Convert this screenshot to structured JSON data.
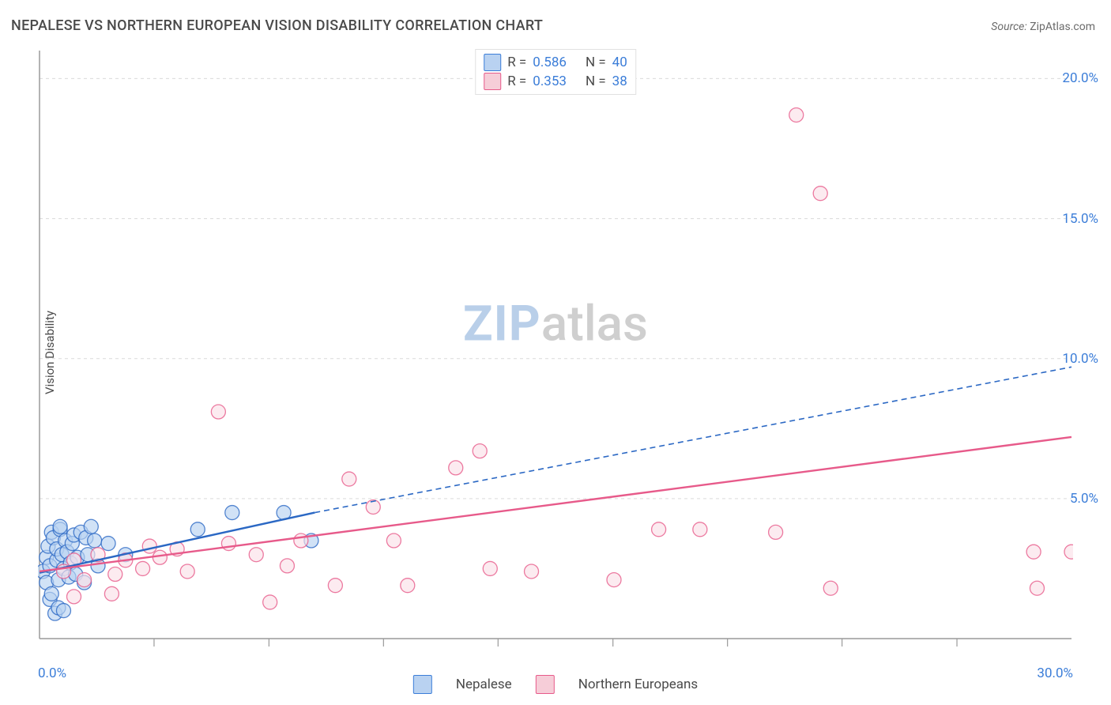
{
  "title": "NEPALESE VS NORTHERN EUROPEAN VISION DISABILITY CORRELATION CHART",
  "source_label": "Source:",
  "source_name": "ZipAtlas.com",
  "ylabel": "Vision Disability",
  "watermark": {
    "zip": "ZIP",
    "atlas": "atlas"
  },
  "xlim": [
    0,
    30
  ],
  "ylim": [
    0,
    21
  ],
  "x_axis": {
    "origin": "0.0%",
    "end": "30.0%",
    "ticks": [
      3.33,
      6.67,
      10.0,
      13.33,
      16.67,
      20.0,
      23.33,
      26.67
    ]
  },
  "y_axis": {
    "ticks": [
      {
        "v": 5.0,
        "label": "5.0%"
      },
      {
        "v": 10.0,
        "label": "10.0%"
      },
      {
        "v": 15.0,
        "label": "15.0%"
      },
      {
        "v": 20.0,
        "label": "20.0%"
      }
    ],
    "gridlines": [
      5.0,
      10.0,
      15.0,
      20.0
    ],
    "grid_color": "#dadada",
    "grid_dash": "4,4"
  },
  "axis_color": "#9a9a9a",
  "background_color": "#ffffff",
  "legend_top": {
    "rows": [
      {
        "swatch_fill": "#b9d2f1",
        "swatch_stroke": "#3b7dd8",
        "rlabel": "R =",
        "r": "0.586",
        "nlabel": "N =",
        "n": "40"
      },
      {
        "swatch_fill": "#f6cdd8",
        "swatch_stroke": "#e75a8a",
        "rlabel": "R =",
        "r": "0.353",
        "nlabel": "N =",
        "n": "38"
      }
    ]
  },
  "legend_bottom": [
    {
      "swatch_fill": "#b9d2f1",
      "swatch_stroke": "#3b7dd8",
      "label": "Nepalese"
    },
    {
      "swatch_fill": "#f6cdd8",
      "swatch_stroke": "#e75a8a",
      "label": "Northern Europeans"
    }
  ],
  "series": {
    "nepalese": {
      "color_stroke": "#2b68c4",
      "color_fill": "#b9d2f1",
      "marker_r": 9,
      "scatter": [
        [
          0.1,
          2.4
        ],
        [
          0.2,
          2.0
        ],
        [
          0.2,
          2.9
        ],
        [
          0.25,
          3.3
        ],
        [
          0.3,
          2.6
        ],
        [
          0.3,
          1.4
        ],
        [
          0.35,
          3.8
        ],
        [
          0.35,
          1.6
        ],
        [
          0.4,
          3.6
        ],
        [
          0.45,
          0.9
        ],
        [
          0.5,
          2.8
        ],
        [
          0.5,
          3.2
        ],
        [
          0.55,
          2.1
        ],
        [
          0.55,
          1.1
        ],
        [
          0.6,
          3.9
        ],
        [
          0.6,
          4.0
        ],
        [
          0.65,
          3.0
        ],
        [
          0.7,
          2.5
        ],
        [
          0.7,
          1.0
        ],
        [
          0.75,
          3.5
        ],
        [
          0.8,
          3.1
        ],
        [
          0.85,
          2.2
        ],
        [
          0.9,
          2.7
        ],
        [
          0.95,
          3.4
        ],
        [
          1.0,
          3.7
        ],
        [
          1.05,
          2.3
        ],
        [
          1.1,
          2.9
        ],
        [
          1.2,
          3.8
        ],
        [
          1.3,
          2.0
        ],
        [
          1.35,
          3.6
        ],
        [
          1.4,
          3.0
        ],
        [
          1.5,
          4.0
        ],
        [
          1.6,
          3.5
        ],
        [
          1.7,
          2.6
        ],
        [
          2.0,
          3.4
        ],
        [
          2.5,
          3.0
        ],
        [
          4.6,
          3.9
        ],
        [
          5.6,
          4.5
        ],
        [
          7.1,
          4.5
        ],
        [
          7.9,
          3.5
        ]
      ],
      "trend_solid": {
        "x1": 0,
        "y1": 2.35,
        "x2": 8.0,
        "y2": 4.5,
        "width": 2.4
      },
      "trend_dash": {
        "x1": 8.0,
        "y1": 4.5,
        "x2": 30.0,
        "y2": 9.7,
        "dash": "7,5",
        "width": 1.6
      }
    },
    "northern": {
      "color_stroke": "#e75a8a",
      "color_fill": "#fbe0e8",
      "marker_r": 9,
      "scatter": [
        [
          0.7,
          2.4
        ],
        [
          1.0,
          2.8
        ],
        [
          1.0,
          1.5
        ],
        [
          1.3,
          2.1
        ],
        [
          1.7,
          3.0
        ],
        [
          2.1,
          1.6
        ],
        [
          2.2,
          2.3
        ],
        [
          2.5,
          2.8
        ],
        [
          3.0,
          2.5
        ],
        [
          3.2,
          3.3
        ],
        [
          3.5,
          2.9
        ],
        [
          4.0,
          3.2
        ],
        [
          4.3,
          2.4
        ],
        [
          5.2,
          8.1
        ],
        [
          5.5,
          3.4
        ],
        [
          6.3,
          3.0
        ],
        [
          6.7,
          1.3
        ],
        [
          7.2,
          2.6
        ],
        [
          7.6,
          3.5
        ],
        [
          8.6,
          1.9
        ],
        [
          9.0,
          5.7
        ],
        [
          9.7,
          4.7
        ],
        [
          10.3,
          3.5
        ],
        [
          10.7,
          1.9
        ],
        [
          12.1,
          6.1
        ],
        [
          12.8,
          6.7
        ],
        [
          13.1,
          2.5
        ],
        [
          14.3,
          2.4
        ],
        [
          16.7,
          2.1
        ],
        [
          18.0,
          3.9
        ],
        [
          19.2,
          3.9
        ],
        [
          21.4,
          3.8
        ],
        [
          22.0,
          18.7
        ],
        [
          22.7,
          15.9
        ],
        [
          23.0,
          1.8
        ],
        [
          28.9,
          3.1
        ],
        [
          29.0,
          1.8
        ],
        [
          30.0,
          3.1
        ]
      ],
      "trend_solid": {
        "x1": 0,
        "y1": 2.4,
        "x2": 30.0,
        "y2": 7.2,
        "width": 2.4
      }
    }
  }
}
